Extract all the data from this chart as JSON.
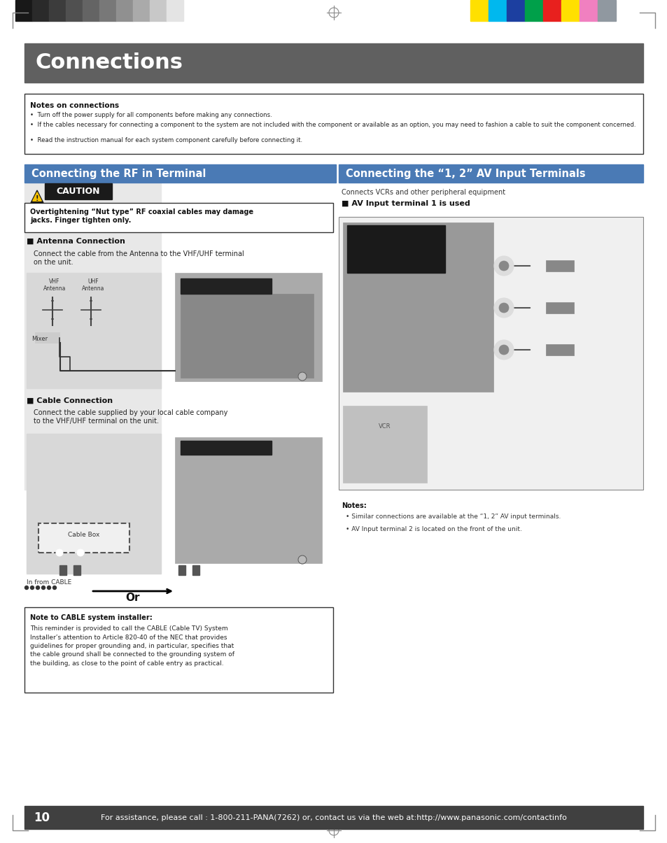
{
  "page_bg": "#ffffff",
  "header_bg": "#606060",
  "header_text": "Connections",
  "header_text_color": "#ffffff",
  "notes_title": "Notes on connections",
  "notes_bullet1": "Turn off the power supply for all components before making any connections.",
  "notes_bullet2": "If the cables necessary for connecting a component to the system are not included with the component or available as an option, you may need to fashion a cable to suit the component concerned.",
  "notes_bullet3": "Read the instruction manual for each system component carefully before connecting it.",
  "left_section_title": "Connecting the RF in Terminal",
  "right_section_title": "Connecting the “1, 2” AV Input Terminals",
  "section_title_bg": "#4a7ab5",
  "section_title_color": "#ffffff",
  "caution_text": "CAUTION",
  "caution_box_text": "Overtightening “Nut type” RF coaxial cables may damage\njacks. Finger tighten only.",
  "antenna_header": "■ Antenna Connection",
  "antenna_text": "Connect the cable from the Antenna to the VHF/UHF terminal\non the unit.",
  "antenna_vhf_label": "VHF\nAntenna",
  "antenna_uhf_label": "UHF\nAntenna",
  "antenna_mixer_label": "Mixer",
  "cable_header": "■ Cable Connection",
  "cable_text": "Connect the cable supplied by your local cable company\nto the VHF/UHF terminal on the unit.",
  "cable_box_label": "Cable Box",
  "cable_in_label": "In from CABLE",
  "cable_or_label": "Or",
  "note_cable_title": "Note to CABLE system installer:",
  "note_cable_text": "This reminder is provided to call the CABLE (Cable TV) System\nInstaller’s attention to Article 820-40 of the NEC that provides\nguidelines for proper grounding and, in particular, specifies that\nthe cable ground shall be connected to the grounding system of\nthe building, as close to the point of cable entry as practical.",
  "right_subtitle": "Connects VCRs and other peripheral equipment",
  "av_header": "■ AV Input terminal 1 is used",
  "av_notes_title": "Notes:",
  "av_note1": "Similar connections are available at the “1, 2” AV input terminals.",
  "av_note2": "AV Input terminal 2 is located on the front of the unit.",
  "footer_bg": "#404040",
  "footer_text": "For assistance, please call : 1-800-211-PANA(7262) or, contact us via the web at:http://www.panasonic.com/contactinfo",
  "footer_page": "10",
  "footer_text_color": "#ffffff",
  "top_color_bars": [
    "#ffe000",
    "#00b8ee",
    "#1c3fa0",
    "#00a04a",
    "#e8201e",
    "#ffe000",
    "#f080c0",
    "#9098a0"
  ],
  "top_grey_bars": [
    "#181818",
    "#2a2a2a",
    "#3c3c3c",
    "#505050",
    "#646464",
    "#787878",
    "#909090",
    "#aaaaaa",
    "#c8c8c8",
    "#e4e4e4"
  ]
}
